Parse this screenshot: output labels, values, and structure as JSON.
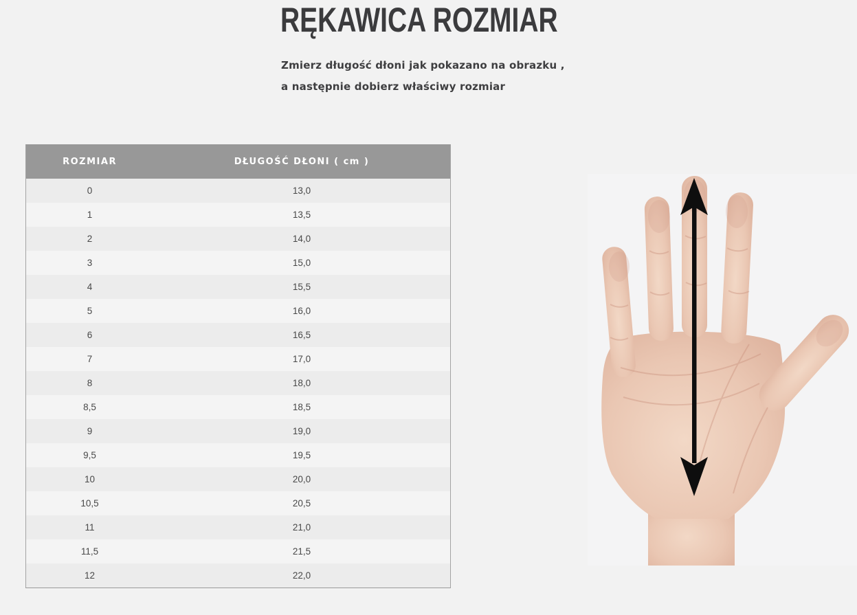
{
  "header": {
    "title": "RĘKAWICA ROZMIAR",
    "subtitle_line1": "Zmierz długość dłoni jak pokazano na obrazku ,",
    "subtitle_line2": "a następnie dobierz właściwy rozmiar"
  },
  "size_table": {
    "columns": [
      "ROZMIAR",
      "DŁUGOŚĆ DŁONI ( cm )"
    ],
    "rows": [
      [
        "0",
        "13,0"
      ],
      [
        "1",
        "13,5"
      ],
      [
        "2",
        "14,0"
      ],
      [
        "3",
        "15,0"
      ],
      [
        "4",
        "15,5"
      ],
      [
        "5",
        "16,0"
      ],
      [
        "6",
        "16,5"
      ],
      [
        "7",
        "17,0"
      ],
      [
        "8",
        "18,0"
      ],
      [
        "8,5",
        "18,5"
      ],
      [
        "9",
        "19,0"
      ],
      [
        "9,5",
        "19,5"
      ],
      [
        "10",
        "20,0"
      ],
      [
        "10,5",
        "20,5"
      ],
      [
        "11",
        "21,0"
      ],
      [
        "11,5",
        "21,5"
      ],
      [
        "12",
        "22,0"
      ]
    ]
  },
  "figure": {
    "description": "open hand with vertical double-headed arrow showing palm length measurement",
    "arrow_icon": "double-headed-vertical-arrow",
    "arrow_color": "#0e0e0e",
    "skin_color": "#eac7b3",
    "photo_background": "#f4f4f5"
  },
  "colors": {
    "page_background": "#f2f2f2",
    "table_header_background": "#989898",
    "table_header_text": "#ffffff",
    "row_dark": "#ececec",
    "row_light": "#f4f4f4",
    "title_text": "#3b3b3d",
    "cell_text": "#484848"
  }
}
